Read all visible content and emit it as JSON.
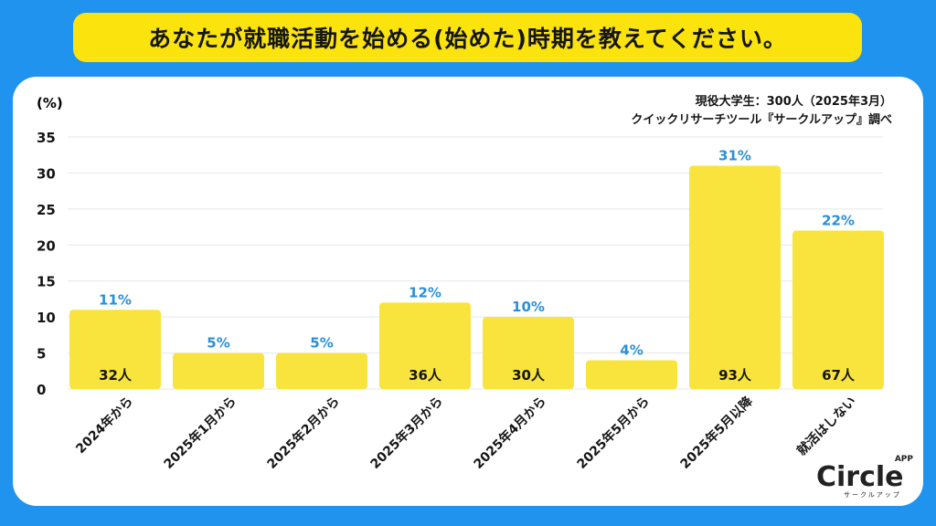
{
  "title": "あなたが就職活動を始める(始めた)時期を教えてください。",
  "source_line1": "現役大学生：300人（2025年3月）",
  "source_line2": "クイックリサーチツール『サークルアップ』調べ",
  "logo": {
    "text": "Circle",
    "app": "APP",
    "kana": "サークルアップ"
  },
  "colors": {
    "background": "#1f93ee",
    "bar": "#f8e43c",
    "value_label": "#2b8fd8",
    "title_bg": "#fbe30e"
  },
  "chart_data": {
    "type": "bar",
    "ylabel": "(%)",
    "ylim": [
      0,
      35
    ],
    "yticks": [
      0,
      5,
      10,
      15,
      20,
      25,
      30,
      35
    ],
    "grid": true,
    "categories": [
      "2024年から",
      "2025年1月から",
      "2025年2月から",
      "2025年3月から",
      "2025年4月から",
      "2025年5月から",
      "2025年5月以降",
      "就活はしない"
    ],
    "values": [
      11,
      5,
      5,
      12,
      10,
      4,
      31,
      22
    ],
    "value_labels": [
      "11%",
      "5%",
      "5%",
      "12%",
      "10%",
      "4%",
      "31%",
      "22%"
    ],
    "counts": [
      "32人",
      "",
      "",
      "36人",
      "30人",
      "",
      "93人",
      "67人"
    ]
  }
}
